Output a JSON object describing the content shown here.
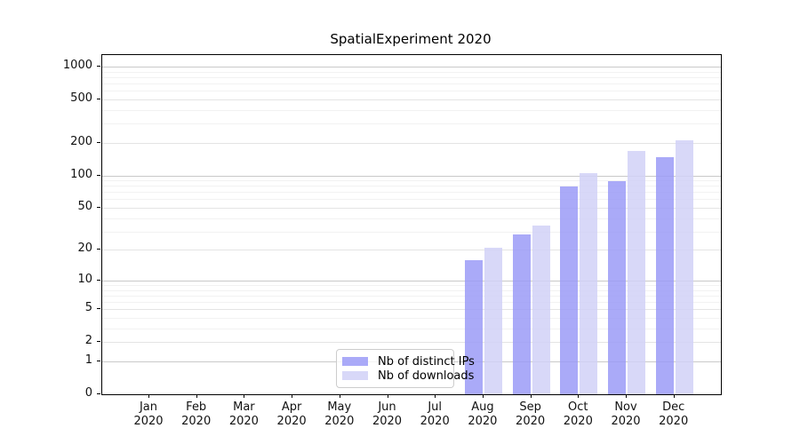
{
  "chart_data": {
    "type": "bar",
    "title": "SpatialExperiment 2020",
    "categories": [
      "Jan",
      "Feb",
      "Mar",
      "Apr",
      "May",
      "Jun",
      "Jul",
      "Aug",
      "Sep",
      "Oct",
      "Nov",
      "Dec"
    ],
    "category_year": "2020",
    "series": [
      {
        "name": "Nb of distinct IPs",
        "color": "#9b9bf7",
        "values": [
          0,
          0,
          0,
          0,
          0,
          0,
          0,
          16,
          28,
          79,
          88,
          148
        ]
      },
      {
        "name": "Nb of downloads",
        "color": "#d1d1f7",
        "values": [
          0,
          0,
          0,
          0,
          0,
          0,
          0,
          21,
          34,
          104,
          167,
          209
        ]
      }
    ],
    "yscale": "log10(value+1)",
    "ylim": [
      0,
      1260
    ],
    "yticks": [
      0,
      1,
      2,
      5,
      10,
      20,
      50,
      100,
      200,
      500,
      1000
    ],
    "decade_ticks": [
      1,
      10,
      100,
      1000
    ],
    "minor_gridlines": [
      3,
      4,
      6,
      7,
      8,
      9,
      30,
      40,
      60,
      70,
      80,
      90,
      300,
      400,
      600,
      700,
      800,
      900
    ],
    "grid": "horizontal",
    "legend_position": "inside-bottom-center",
    "xlabel": "",
    "ylabel": ""
  }
}
